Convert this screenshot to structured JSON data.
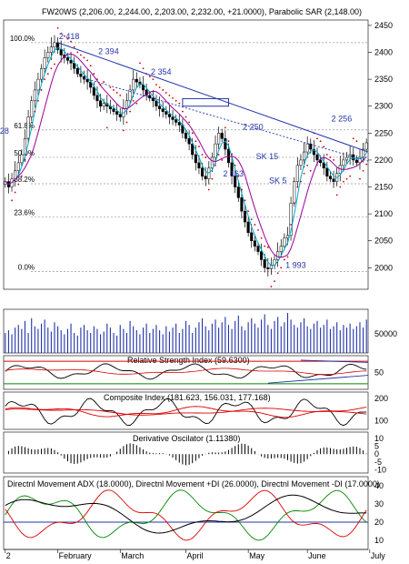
{
  "colors": {
    "candle": "#000000",
    "blue": "#2233aa",
    "magenta": "#990099",
    "cyan": "#00aacc",
    "sar": "#cc0000",
    "red": "#dd0000",
    "green": "#008800",
    "grid": "#999999"
  },
  "chart_data": {
    "type": "candlestick",
    "title": "FW20WS (2,206.00, 2,244.00, 2,203.00, 2,232.00, +21.0000), Parabolic SAR (2,148.00)",
    "price_axis": {
      "min": 1960,
      "max": 2460,
      "ticks": [
        2450,
        2400,
        2350,
        2300,
        2250,
        2200,
        2150,
        2100,
        2050,
        2000
      ]
    },
    "fib_levels": [
      {
        "label": "100.0%",
        "value": 2418
      },
      {
        "label": "61.8%",
        "value": 2256
      },
      {
        "label": "50.0%",
        "value": 2205
      },
      {
        "label": "38.2%",
        "value": 2156
      },
      {
        "label": "23.6%",
        "value": 2094
      },
      {
        "label": "0.0%",
        "value": 1993
      }
    ],
    "annotations": [
      {
        "text": "2 418",
        "x": 18,
        "y": 2418
      },
      {
        "text": "2 394",
        "x": 30,
        "y": 2390
      },
      {
        "text": "2 354",
        "x": 46,
        "y": 2352
      },
      {
        "text": "2 250",
        "x": 74,
        "y": 2250
      },
      {
        "text": "2 256",
        "x": 101,
        "y": 2265
      },
      {
        "text": "SK 15",
        "x": 78,
        "y": 2195
      },
      {
        "text": "2 163",
        "x": 68,
        "y": 2163
      },
      {
        "text": "SK 5",
        "x": 82,
        "y": 2150
      },
      {
        "text": "1 993",
        "x": 87,
        "y": 1993
      },
      {
        "text": "28",
        "x": 0,
        "y": 2242
      }
    ],
    "months": [
      "2",
      "February",
      "March",
      "April",
      "May",
      "June",
      "July"
    ],
    "month_index": [
      0,
      16,
      35,
      55,
      74,
      92,
      111
    ],
    "series_close": [
      2160,
      2150,
      2165,
      2180,
      2195,
      2210,
      2240,
      2280,
      2310,
      2330,
      2350,
      2370,
      2390,
      2400,
      2410,
      2418,
      2405,
      2395,
      2390,
      2385,
      2380,
      2370,
      2360,
      2355,
      2350,
      2345,
      2335,
      2320,
      2310,
      2300,
      2305,
      2300,
      2295,
      2290,
      2285,
      2280,
      2295,
      2310,
      2330,
      2350,
      2345,
      2340,
      2330,
      2320,
      2315,
      2310,
      2300,
      2295,
      2290,
      2285,
      2280,
      2275,
      2270,
      2265,
      2250,
      2240,
      2230,
      2210,
      2195,
      2185,
      2170,
      2165,
      2185,
      2205,
      2230,
      2250,
      2240,
      2220,
      2195,
      2170,
      2150,
      2130,
      2105,
      2085,
      2065,
      2050,
      2040,
      2030,
      2015,
      2000,
      1998,
      2005,
      2015,
      2030,
      2040,
      2055,
      2060,
      2120,
      2160,
      2190,
      2200,
      2215,
      2230,
      2220,
      2210,
      2200,
      2195,
      2185,
      2170,
      2165,
      2160,
      2175,
      2190,
      2200,
      2205,
      2210,
      2200,
      2195,
      2205,
      2220,
      2232
    ],
    "volume_axis": {
      "label": "50000"
    },
    "volume": [
      30,
      34,
      28,
      38,
      42,
      36,
      48,
      30,
      52,
      40,
      36,
      44,
      50,
      38,
      32,
      46,
      40,
      34,
      28,
      36,
      44,
      30,
      26,
      38,
      42,
      34,
      30,
      40,
      36,
      28,
      32,
      44,
      38,
      30,
      26,
      42,
      36,
      30,
      48,
      40,
      34,
      28,
      38,
      44,
      30,
      36,
      42,
      34,
      28,
      40,
      32,
      38,
      44,
      30,
      36,
      48,
      42,
      30,
      38,
      46,
      52,
      40,
      34,
      44,
      50,
      38,
      46,
      54,
      42,
      36,
      48,
      56,
      40,
      34,
      46,
      52,
      44,
      38,
      50,
      58,
      42,
      36,
      48,
      54,
      40,
      46,
      60,
      50,
      42,
      38,
      46,
      52,
      40,
      36,
      44,
      48,
      38,
      42,
      50,
      36,
      40,
      46,
      34,
      42,
      38,
      44,
      36,
      40,
      46,
      38,
      50
    ],
    "rsi": {
      "title": "Relative Strength Index (59.6300)",
      "ticks": [
        50
      ],
      "ylim": [
        20,
        80
      ],
      "upper": 70,
      "lower": 30
    },
    "composite": {
      "title": "Composite Index (181.623, 156.031, 177.168)",
      "ticks": [
        200,
        100
      ],
      "ylim": [
        60,
        230
      ]
    },
    "dosc": {
      "title": "Derivative Oscilator (1.11380)",
      "ticks": [
        10,
        5,
        0,
        -5,
        -10
      ],
      "ylim": [
        -12,
        14
      ]
    },
    "dmi": {
      "title": "Directnl Movement ADX (18.0000), Directnl Movement +DI (26.0000), Directnl Movement -DI (17.0000)",
      "ticks": [
        40,
        30,
        20,
        10
      ],
      "ylim": [
        5,
        45
      ]
    }
  }
}
